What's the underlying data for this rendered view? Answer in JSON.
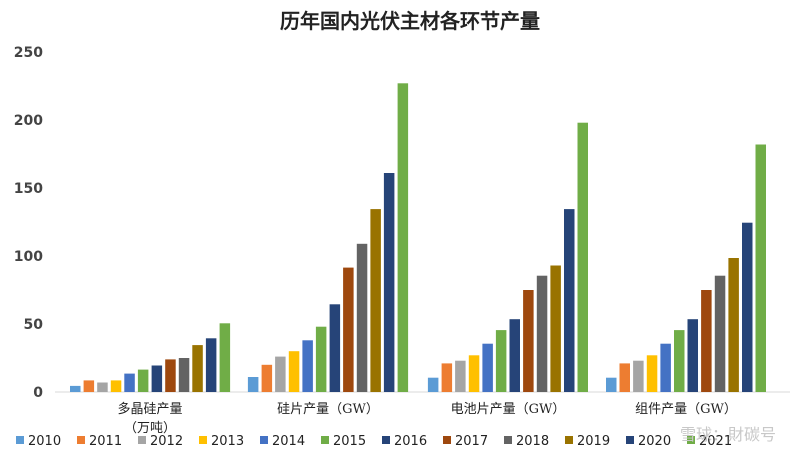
{
  "chart_data": {
    "type": "bar",
    "title": "历年国内光伏主材各环节产量",
    "categories": [
      [
        "多晶硅产量",
        "（万吨）"
      ],
      [
        "硅片产量（GW）"
      ],
      [
        "电池片产量（GW）"
      ],
      [
        "组件产量（GW）"
      ]
    ],
    "ylim": [
      0,
      250
    ],
    "yticks": [
      "0",
      "50",
      "100",
      "150",
      "200",
      "250"
    ],
    "legend_position": "bottom",
    "series": [
      {
        "name": "2010",
        "color": "#5b9bd5",
        "values": [
          4.5,
          11,
          10.5,
          10.5
        ]
      },
      {
        "name": "2011",
        "color": "#ed7d31",
        "values": [
          8.5,
          20,
          21,
          21
        ]
      },
      {
        "name": "2012",
        "color": "#a5a5a5",
        "values": [
          7,
          26,
          23,
          23
        ]
      },
      {
        "name": "2013",
        "color": "#ffc000",
        "values": [
          8.5,
          30,
          27,
          27
        ]
      },
      {
        "name": "2014",
        "color": "#4472c4",
        "values": [
          13.5,
          38,
          35.5,
          35.5
        ]
      },
      {
        "name": "2015",
        "color": "#70ad47",
        "values": [
          16.5,
          48,
          45.5,
          45.5
        ]
      },
      {
        "name": "2016",
        "color": "#264478",
        "values": [
          19.5,
          64.5,
          53.5,
          53.5
        ]
      },
      {
        "name": "2017",
        "color": "#9e480e",
        "values": [
          24,
          91.5,
          75,
          75
        ]
      },
      {
        "name": "2018",
        "color": "#636363",
        "values": [
          25,
          109,
          85.5,
          85.5
        ]
      },
      {
        "name": "2019",
        "color": "#997300",
        "values": [
          34.5,
          134.5,
          93,
          98.5
        ]
      },
      {
        "name": "2020",
        "color": "#264478",
        "values": [
          39.5,
          161,
          134.5,
          124.5
        ]
      },
      {
        "name": "2021",
        "color": "#70ad47",
        "values": [
          50.5,
          227,
          198,
          182
        ]
      }
    ]
  },
  "watermark": "雪球：財碳号"
}
